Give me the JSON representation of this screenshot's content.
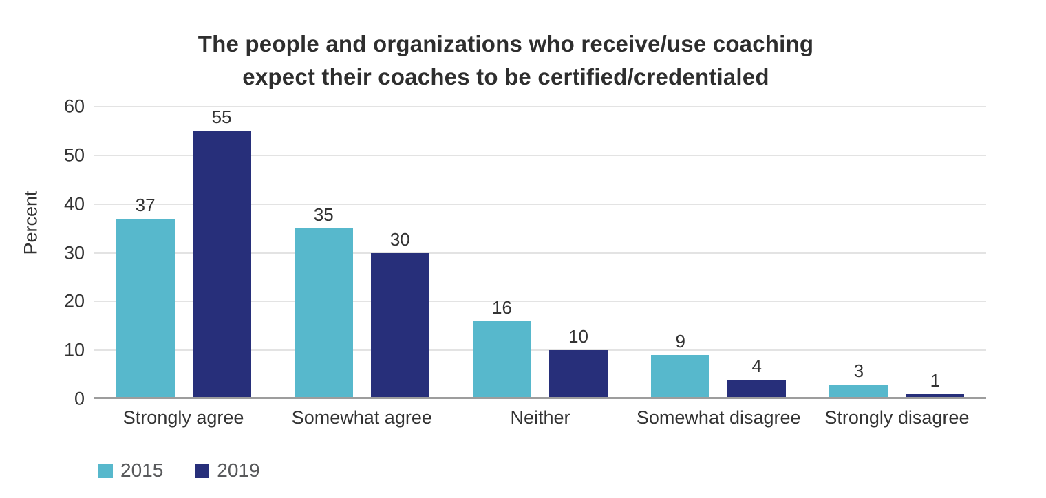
{
  "title": {
    "line1": "The people and organizations who receive/use coaching",
    "line2": "expect their coaches to be certified/credentialed"
  },
  "chart_data": {
    "type": "bar",
    "categories": [
      "Strongly agree",
      "Somewhat agree",
      "Neither",
      "Somewhat disagree",
      "Strongly disagree"
    ],
    "series": [
      {
        "name": "2015",
        "color": "#57b8cc",
        "values": [
          37,
          35,
          16,
          9,
          3
        ]
      },
      {
        "name": "2019",
        "color": "#272f7a",
        "values": [
          55,
          30,
          10,
          4,
          1
        ]
      }
    ],
    "title": "The people and organizations who receive/use coaching expect their coaches to be certified/credentialed",
    "xlabel": "",
    "ylabel": "Percent",
    "ylim": [
      0,
      60
    ],
    "yticks": [
      0,
      10,
      20,
      30,
      40,
      50,
      60
    ],
    "grid": true,
    "value_labels": true,
    "legend_position": "bottom-left",
    "colors": {
      "grid": "#e3e3e3",
      "axis_line": "#9d9d9d",
      "text": "#333333",
      "legend_text": "#58595b"
    }
  }
}
